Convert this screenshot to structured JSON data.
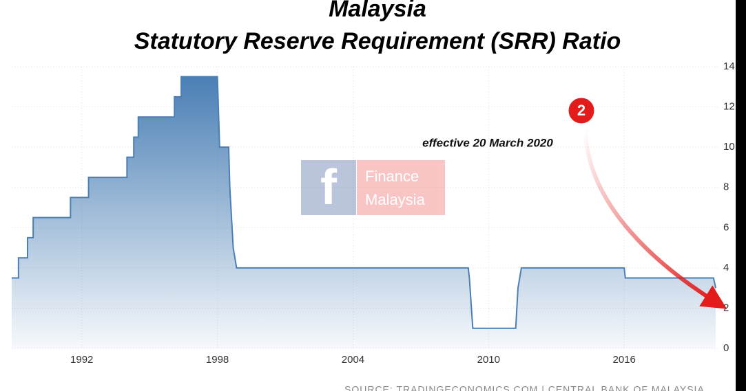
{
  "chart_data": {
    "type": "area",
    "title": "Malaysia",
    "subtitle": "Statutory Reserve Requirement (SRR) Ratio",
    "annotation": "effective 20 March 2020",
    "badge": "2",
    "watermark": "Finance Malaysia",
    "source": "SOURCE: TRADINGECONOMICS.COM | CENTRAL BANK OF MALAYSIA",
    "x": [
      1988.9,
      1989.2,
      1989.2,
      1989.6,
      1989.6,
      1989.85,
      1989.85,
      1991.5,
      1991.5,
      1992.3,
      1992.3,
      1994.0,
      1994.0,
      1994.3,
      1994.3,
      1994.5,
      1994.5,
      1996.1,
      1996.1,
      1996.4,
      1996.4,
      1998.0,
      1998.1,
      1998.5,
      1998.55,
      1998.7,
      1998.85,
      2009.1,
      2009.15,
      2009.3,
      2011.2,
      2011.3,
      2011.45,
      2016.0,
      2016.05,
      2019.95,
      2020.05
    ],
    "values": [
      3.5,
      3.5,
      4.5,
      4.5,
      5.5,
      5.5,
      6.5,
      6.5,
      7.5,
      7.5,
      8.5,
      8.5,
      9.5,
      9.5,
      10.5,
      10.5,
      11.5,
      11.5,
      12.5,
      12.5,
      13.5,
      13.5,
      10,
      10,
      8,
      5,
      4,
      4,
      3.5,
      1,
      1,
      3,
      4,
      4,
      3.5,
      3.5,
      3
    ],
    "color": "#4a7fb5",
    "xlim": [
      1988.9,
      2020.2
    ],
    "xticks": [
      1992,
      1998,
      2004,
      2010,
      2016
    ],
    "ylim": [
      0,
      14
    ],
    "yticks": [
      0,
      2,
      4,
      6,
      8,
      10,
      12,
      14
    ],
    "grid": true
  }
}
